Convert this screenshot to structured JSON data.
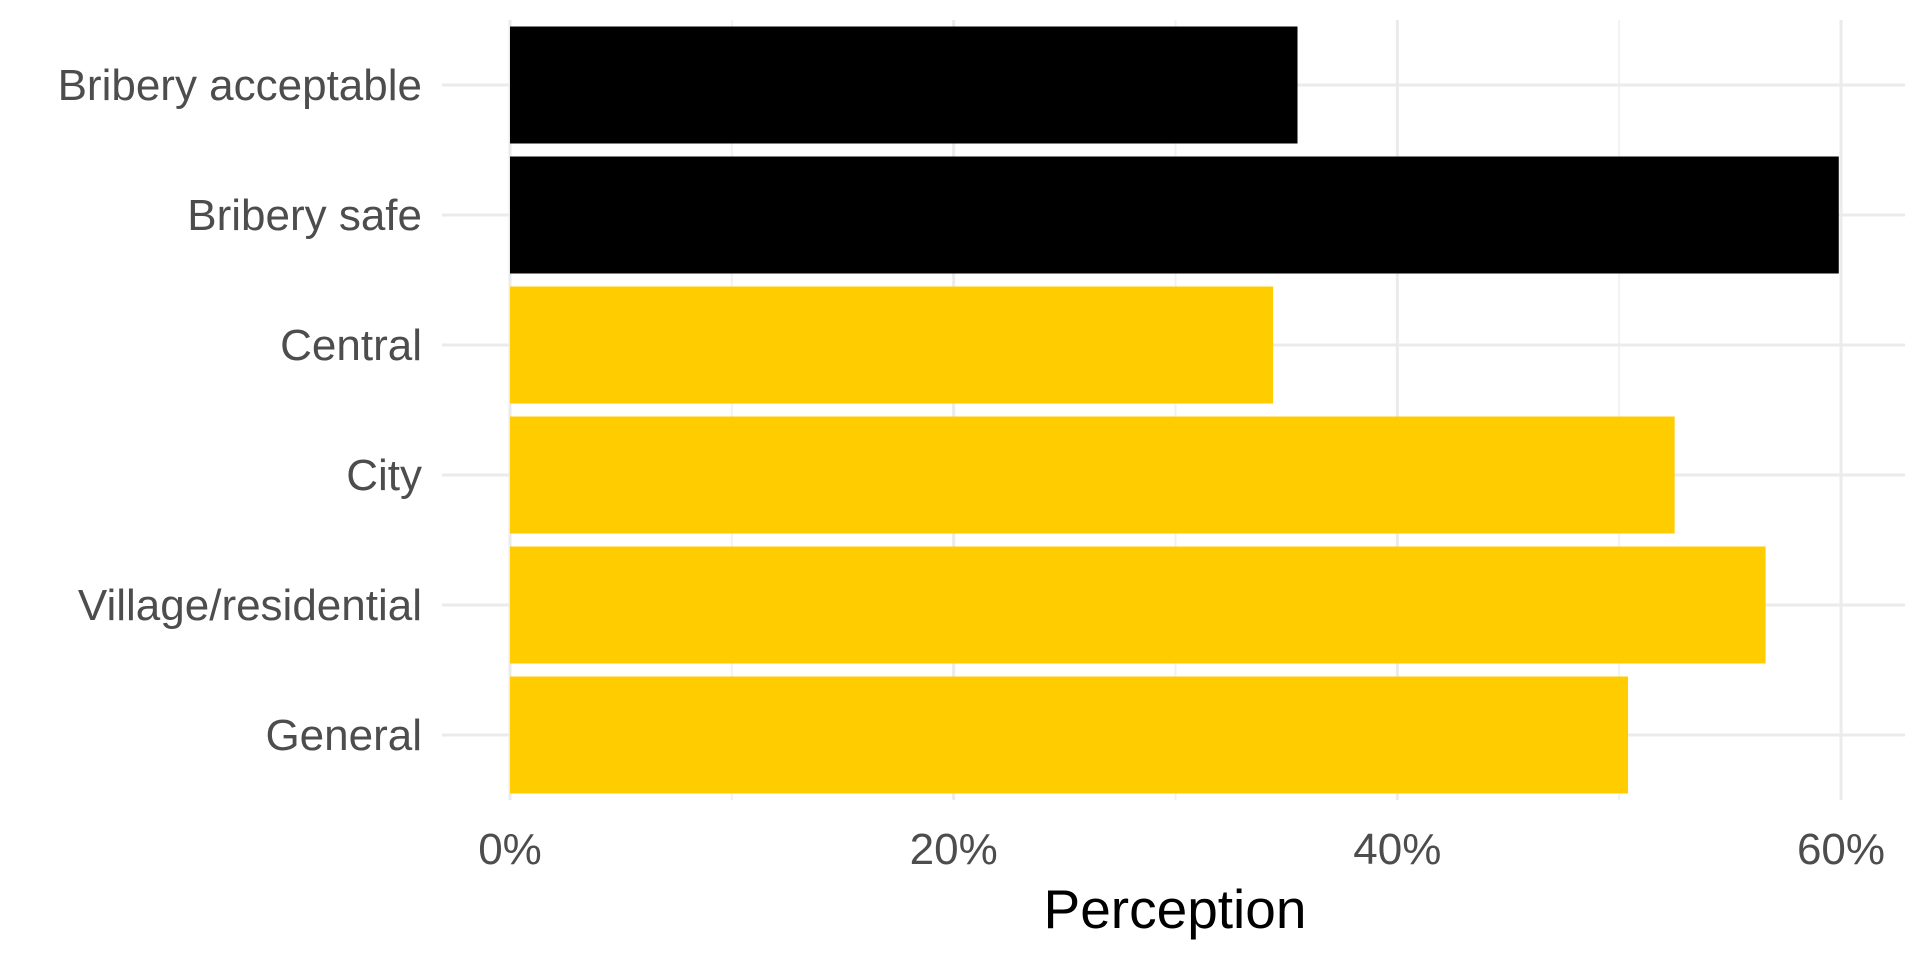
{
  "chart_data": {
    "type": "bar",
    "orientation": "horizontal",
    "categories": [
      "Bribery acceptable",
      "Bribery safe",
      "Central",
      "City",
      "Village/residential",
      "General"
    ],
    "values": [
      35.5,
      59.9,
      34.4,
      52.5,
      56.6,
      50.4
    ],
    "colors": [
      "#000000",
      "#000000",
      "#ffcc00",
      "#ffcc00",
      "#ffcc00",
      "#ffcc00"
    ],
    "xlabel": "Perception",
    "ylabel": "",
    "xlim": [
      0,
      63
    ],
    "x_ticks": [
      0,
      20,
      40,
      60
    ],
    "x_tick_labels": [
      "0%",
      "20%",
      "40%",
      "60%"
    ],
    "grid": true,
    "legend": "none"
  }
}
